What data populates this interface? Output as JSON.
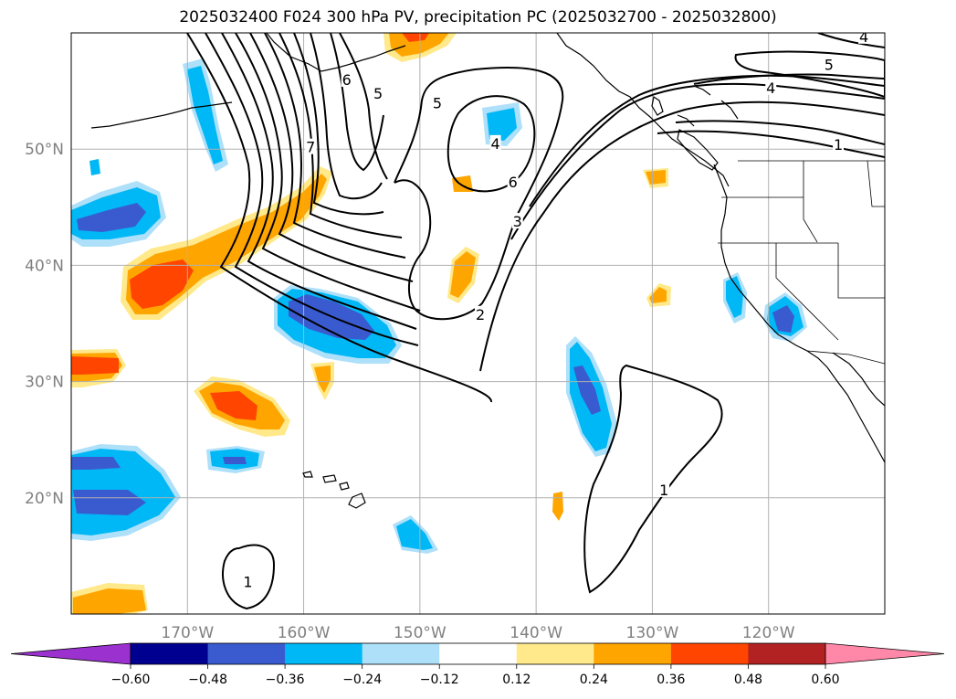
{
  "title": "2025032400 F024 300 hPa PV, precipitation PC (2025032700 - 2025032800)",
  "map": {
    "lon_range": [
      -180,
      -110
    ],
    "lat_range": [
      10,
      60
    ],
    "gridline_color": "#b0b0b0",
    "lon_ticks": [
      {
        "lon": -170,
        "label": "170°W"
      },
      {
        "lon": -160,
        "label": "160°W"
      },
      {
        "lon": -150,
        "label": "150°W"
      },
      {
        "lon": -140,
        "label": "140°W"
      },
      {
        "lon": -130,
        "label": "130°W"
      },
      {
        "lon": -120,
        "label": "120°W"
      }
    ],
    "lat_ticks": [
      {
        "lat": 50,
        "label": "50°N"
      },
      {
        "lat": 40,
        "label": "40°N"
      },
      {
        "lat": 30,
        "label": "30°N"
      },
      {
        "lat": 20,
        "label": "20°N"
      }
    ]
  },
  "contour_labels": [
    {
      "text": "6",
      "lon": -156.3,
      "lat": 56.0
    },
    {
      "text": "5",
      "lon": -153.6,
      "lat": 54.8
    },
    {
      "text": "7",
      "lon": -159.4,
      "lat": 50.2
    },
    {
      "text": "5",
      "lon": -148.5,
      "lat": 54.0
    },
    {
      "text": "4",
      "lon": -143.5,
      "lat": 50.5
    },
    {
      "text": "6",
      "lon": -142.0,
      "lat": 47.2
    },
    {
      "text": "3",
      "lon": -141.6,
      "lat": 43.8
    },
    {
      "text": "2",
      "lon": -144.8,
      "lat": 35.8
    },
    {
      "text": "5",
      "lon": -114.8,
      "lat": 57.3
    },
    {
      "text": "4",
      "lon": -119.8,
      "lat": 55.3
    },
    {
      "text": "1",
      "lon": -114.0,
      "lat": 50.4
    },
    {
      "text": "4",
      "lon": -111.8,
      "lat": 59.7
    },
    {
      "text": "1",
      "lon": -129.0,
      "lat": 20.7
    },
    {
      "text": "1",
      "lon": -164.8,
      "lat": 12.8
    }
  ],
  "colorbar": {
    "under_color": "#9b32d0",
    "over_color": "#ff88a8",
    "bins": [
      "#000090",
      "#3a5bd0",
      "#00b8f5",
      "#aee0fa",
      "#ffffff",
      "#ffe98a",
      "#ffa500",
      "#ff4500",
      "#b22222"
    ],
    "tick_labels": [
      "−0.60",
      "−0.48",
      "−0.36",
      "−0.24",
      "−0.12",
      "0.12",
      "0.24",
      "0.36",
      "0.48",
      "0.60"
    ]
  }
}
